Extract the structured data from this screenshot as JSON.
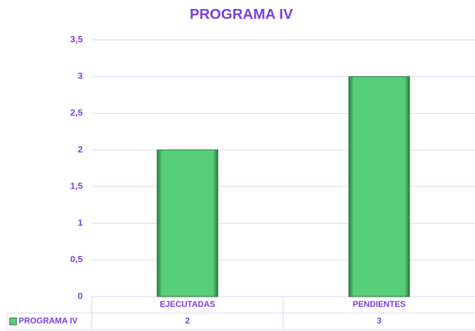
{
  "chart_data": {
    "type": "bar",
    "title": "PROGRAMA IV",
    "categories": [
      "EJECUTADAS",
      "PENDIENTES"
    ],
    "series": [
      {
        "name": "PROGRAMA IV",
        "color": "#57cf78",
        "values": [
          2,
          3
        ]
      }
    ],
    "ylim": [
      0,
      3.5
    ],
    "yticks": [
      0,
      {
        "value": 0.5,
        "label": "0,5"
      },
      1,
      {
        "value": 1.5,
        "label": "1,5"
      },
      2,
      {
        "value": 2.5,
        "label": "2,5"
      },
      3,
      {
        "value": 3.5,
        "label": "3,5"
      }
    ],
    "grid": true
  }
}
